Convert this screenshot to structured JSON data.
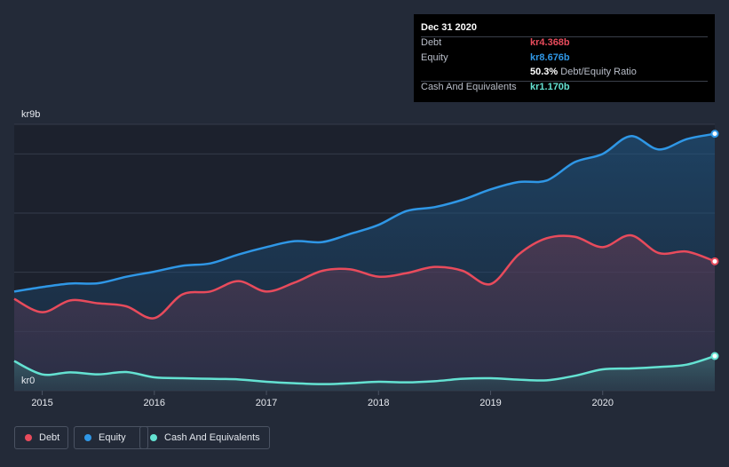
{
  "colors": {
    "debt": "#e84b5c",
    "equity": "#2f97e6",
    "cash": "#64e2d2",
    "grid": "#343b4a",
    "axis_text": "#e6e9ef"
  },
  "tooltip": {
    "date": "Dec 31 2020",
    "debt_label": "Debt",
    "debt_value": "kr4.368b",
    "equity_label": "Equity",
    "equity_value": "kr8.676b",
    "ratio_value": "50.3%",
    "ratio_label": "Debt/Equity Ratio",
    "cash_label": "Cash And Equivalents",
    "cash_value": "kr1.170b"
  },
  "legend": {
    "debt": "Debt",
    "equity": "Equity",
    "cash": "Cash And Equivalents"
  },
  "chart_data": {
    "type": "area",
    "title": "",
    "xlabel": "",
    "ylabel": "",
    "y_top_label": "kr9b",
    "y_bottom_label": "kr0",
    "ylim": [
      0,
      9
    ],
    "xlim": [
      2014.75,
      2021.0
    ],
    "x_ticks": [
      "2015",
      "2016",
      "2017",
      "2018",
      "2019",
      "2020"
    ],
    "grid": true,
    "legend_position": "bottom-left",
    "series": [
      {
        "name": "Equity",
        "color": "#2f97e6",
        "x": [
          2014.75,
          2015.0,
          2015.25,
          2015.5,
          2015.75,
          2016.0,
          2016.25,
          2016.5,
          2016.75,
          2017.0,
          2017.25,
          2017.5,
          2017.75,
          2018.0,
          2018.25,
          2018.5,
          2018.75,
          2019.0,
          2019.25,
          2019.5,
          2019.75,
          2020.0,
          2020.25,
          2020.5,
          2020.75,
          2021.0
        ],
        "values": [
          3.35,
          3.5,
          3.62,
          3.63,
          3.85,
          4.02,
          4.22,
          4.3,
          4.6,
          4.85,
          5.05,
          5.02,
          5.3,
          5.6,
          6.07,
          6.2,
          6.45,
          6.8,
          7.05,
          7.1,
          7.72,
          8.0,
          8.6,
          8.15,
          8.5,
          8.68
        ]
      },
      {
        "name": "Debt",
        "color": "#e84b5c",
        "x": [
          2014.75,
          2015.0,
          2015.25,
          2015.5,
          2015.75,
          2016.0,
          2016.25,
          2016.5,
          2016.75,
          2017.0,
          2017.25,
          2017.5,
          2017.75,
          2018.0,
          2018.25,
          2018.5,
          2018.75,
          2019.0,
          2019.25,
          2019.5,
          2019.75,
          2020.0,
          2020.25,
          2020.5,
          2020.75,
          2021.0
        ],
        "values": [
          3.1,
          2.65,
          3.05,
          2.95,
          2.85,
          2.45,
          3.25,
          3.35,
          3.7,
          3.35,
          3.65,
          4.05,
          4.1,
          3.85,
          3.97,
          4.18,
          4.05,
          3.6,
          4.6,
          5.15,
          5.2,
          4.85,
          5.25,
          4.65,
          4.7,
          4.37
        ]
      },
      {
        "name": "Cash And Equivalents",
        "color": "#64e2d2",
        "x": [
          2014.75,
          2015.0,
          2015.25,
          2015.5,
          2015.75,
          2016.0,
          2016.25,
          2016.5,
          2016.75,
          2017.0,
          2017.25,
          2017.5,
          2017.75,
          2018.0,
          2018.25,
          2018.5,
          2018.75,
          2019.0,
          2019.25,
          2019.5,
          2019.75,
          2020.0,
          2020.25,
          2020.5,
          2020.75,
          2021.0
        ],
        "values": [
          1.0,
          0.55,
          0.62,
          0.55,
          0.63,
          0.45,
          0.42,
          0.4,
          0.38,
          0.3,
          0.25,
          0.22,
          0.25,
          0.3,
          0.28,
          0.32,
          0.4,
          0.42,
          0.37,
          0.35,
          0.5,
          0.72,
          0.75,
          0.8,
          0.88,
          1.17
        ]
      }
    ]
  }
}
